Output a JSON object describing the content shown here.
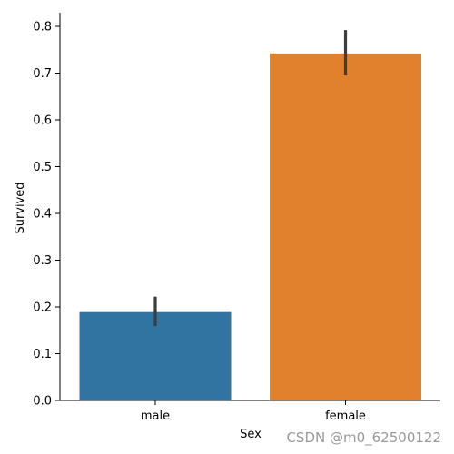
{
  "chart_data": {
    "type": "bar",
    "categories": [
      "male",
      "female"
    ],
    "values": [
      0.189,
      0.742
    ],
    "error_bars": [
      {
        "low": 0.159,
        "high": 0.222
      },
      {
        "low": 0.695,
        "high": 0.792
      }
    ],
    "colors": [
      "#3274a1",
      "#e1812c"
    ],
    "xlabel": "Sex",
    "ylabel": "Survived",
    "ylim": [
      0,
      0.83
    ],
    "yticks": [
      0.0,
      0.1,
      0.2,
      0.3,
      0.4,
      0.5,
      0.6,
      0.7,
      0.8
    ],
    "ytick_labels": [
      "0.0",
      "0.1",
      "0.2",
      "0.3",
      "0.4",
      "0.5",
      "0.6",
      "0.7",
      "0.8"
    ],
    "grid": false,
    "spines": "left-bottom"
  },
  "watermark": "CSDN @m0_62500122"
}
